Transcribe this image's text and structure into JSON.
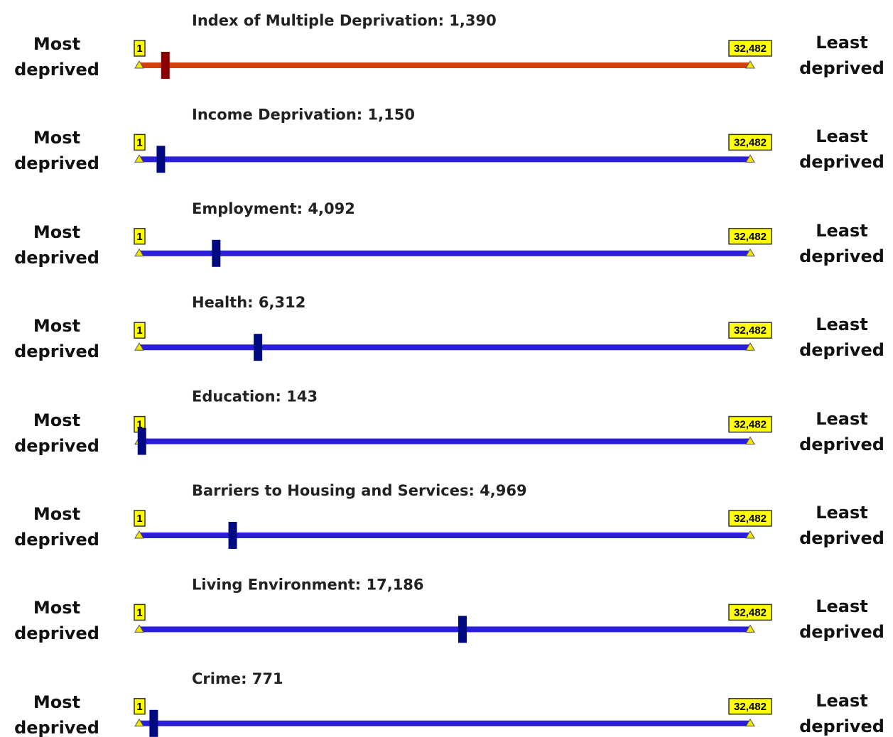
{
  "chart_data": [
    {
      "type": "rank-slider",
      "title": "Index of Multiple Deprivation: 1,390",
      "value": 1390,
      "xlim": [
        1,
        32482
      ],
      "xticks": [
        1,
        {
          "value": 32482,
          "label": "32,482"
        }
      ],
      "left_label": "Most deprived",
      "right_label": "Least deprived",
      "color": "#d0400c",
      "marker_color": "#8b0000"
    },
    {
      "type": "rank-slider",
      "title": "Income Deprivation: 1,150",
      "value": 1150,
      "xlim": [
        1,
        32482
      ],
      "xticks": [
        1,
        {
          "value": 32482,
          "label": "32,482"
        }
      ],
      "left_label": "Most deprived",
      "right_label": "Least deprived",
      "color": "#2a1ed8",
      "marker_color": "#000a80"
    },
    {
      "type": "rank-slider",
      "title": "Employment: 4,092",
      "value": 4092,
      "xlim": [
        1,
        32482
      ],
      "xticks": [
        1,
        {
          "value": 32482,
          "label": "32,482"
        }
      ],
      "left_label": "Most deprived",
      "right_label": "Least deprived",
      "color": "#2a1ed8",
      "marker_color": "#000a80"
    },
    {
      "type": "rank-slider",
      "title": "Health: 6,312",
      "value": 6312,
      "xlim": [
        1,
        32482
      ],
      "xticks": [
        1,
        {
          "value": 32482,
          "label": "32,482"
        }
      ],
      "left_label": "Most deprived",
      "right_label": "Least deprived",
      "color": "#2a1ed8",
      "marker_color": "#000a80"
    },
    {
      "type": "rank-slider",
      "title": "Education: 143",
      "value": 143,
      "xlim": [
        1,
        32482
      ],
      "xticks": [
        1,
        {
          "value": 32482,
          "label": "32,482"
        }
      ],
      "left_label": "Most deprived",
      "right_label": "Least deprived",
      "color": "#2a1ed8",
      "marker_color": "#000a80"
    },
    {
      "type": "rank-slider",
      "title": "Barriers to Housing and Services: 4,969",
      "value": 4969,
      "xlim": [
        1,
        32482
      ],
      "xticks": [
        1,
        {
          "value": 32482,
          "label": "32,482"
        }
      ],
      "left_label": "Most deprived",
      "right_label": "Least deprived",
      "color": "#2a1ed8",
      "marker_color": "#000a80"
    },
    {
      "type": "rank-slider",
      "title": "Living Environment: 17,186",
      "value": 17186,
      "xlim": [
        1,
        32482
      ],
      "xticks": [
        1,
        {
          "value": 32482,
          "label": "32,482"
        }
      ],
      "left_label": "Most deprived",
      "right_label": "Least deprived",
      "color": "#2a1ed8",
      "marker_color": "#000a80"
    },
    {
      "type": "rank-slider",
      "title": "Crime: 771",
      "value": 771,
      "xlim": [
        1,
        32482
      ],
      "xticks": [
        1,
        {
          "value": 32482,
          "label": "32,482"
        }
      ],
      "left_label": "Most deprived",
      "right_label": "Least deprived",
      "color": "#2a1ed8",
      "marker_color": "#000a80"
    }
  ]
}
